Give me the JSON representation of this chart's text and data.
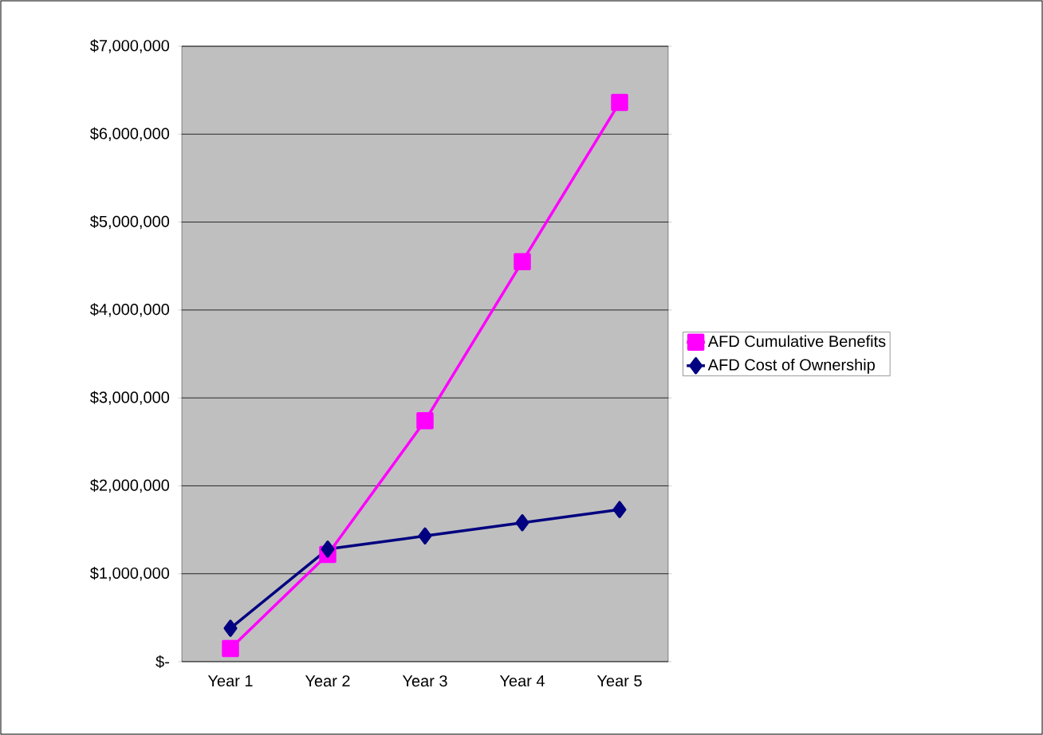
{
  "chart_data": {
    "type": "line",
    "categories": [
      "Year 1",
      "Year 2",
      "Year 3",
      "Year 4",
      "Year 5"
    ],
    "series": [
      {
        "name": "AFD Cumulative Benefits",
        "color": "#ff00ff",
        "marker": "square",
        "values": [
          150000,
          1220000,
          2740000,
          4550000,
          6360000
        ]
      },
      {
        "name": "AFD Cost of Ownership",
        "color": "#000080",
        "marker": "diamond",
        "values": [
          380000,
          1280000,
          1430000,
          1580000,
          1730000
        ]
      }
    ],
    "ylim": [
      0,
      7000000
    ],
    "yticks": [
      {
        "value": 0,
        "label": "$-"
      },
      {
        "value": 1000000,
        "label": "$1,000,000"
      },
      {
        "value": 2000000,
        "label": "$2,000,000"
      },
      {
        "value": 3000000,
        "label": "$3,000,000"
      },
      {
        "value": 4000000,
        "label": "$4,000,000"
      },
      {
        "value": 5000000,
        "label": "$5,000,000"
      },
      {
        "value": 6000000,
        "label": "$6,000,000"
      },
      {
        "value": 7000000,
        "label": "$7,000,000"
      }
    ],
    "grid": "y",
    "legend": "right"
  }
}
